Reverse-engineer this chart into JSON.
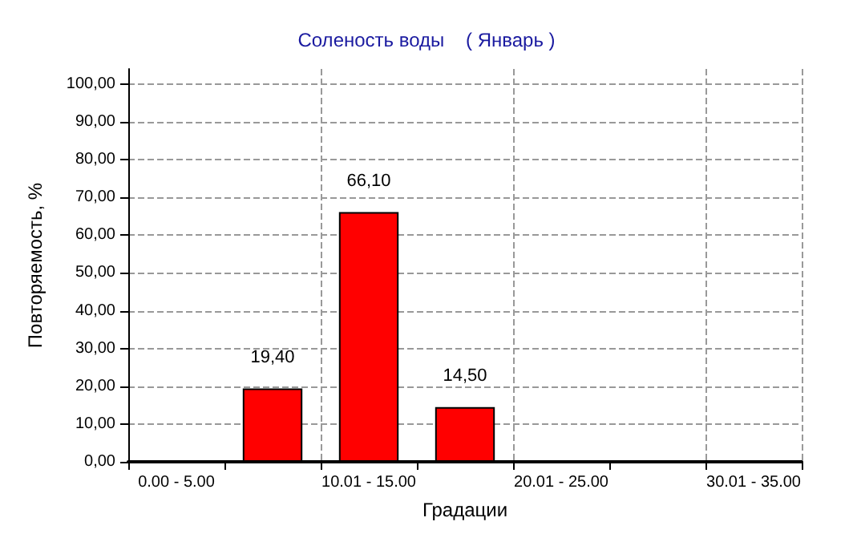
{
  "chart_data": {
    "type": "bar",
    "title": "Соленость воды    ( Январь )",
    "xlabel": "Градации",
    "ylabel": "Повторяемость, %",
    "categories": [
      "0.00 - 5.00",
      null,
      "10.01 - 15.00",
      null,
      "20.01 - 25.00",
      null,
      "30.01 - 35.00"
    ],
    "values": [
      null,
      19.4,
      66.1,
      14.5,
      null,
      null,
      null
    ],
    "value_labels": [
      null,
      "19,40",
      "66,10",
      "14,50",
      null,
      null,
      null
    ],
    "color": "#ff0000",
    "ylim": [
      0,
      104
    ],
    "yticks": [
      {
        "value": 0,
        "label": "0,00"
      },
      {
        "value": 10,
        "label": "10,00"
      },
      {
        "value": 20,
        "label": "20,00"
      },
      {
        "value": 30,
        "label": "30,00"
      },
      {
        "value": 40,
        "label": "40,00"
      },
      {
        "value": 50,
        "label": "50,00"
      },
      {
        "value": 60,
        "label": "60,00"
      },
      {
        "value": 70,
        "label": "70,00"
      },
      {
        "value": 80,
        "label": "80,00"
      },
      {
        "value": 90,
        "label": "90,00"
      },
      {
        "value": 100,
        "label": "100,00"
      }
    ],
    "grid": true
  }
}
